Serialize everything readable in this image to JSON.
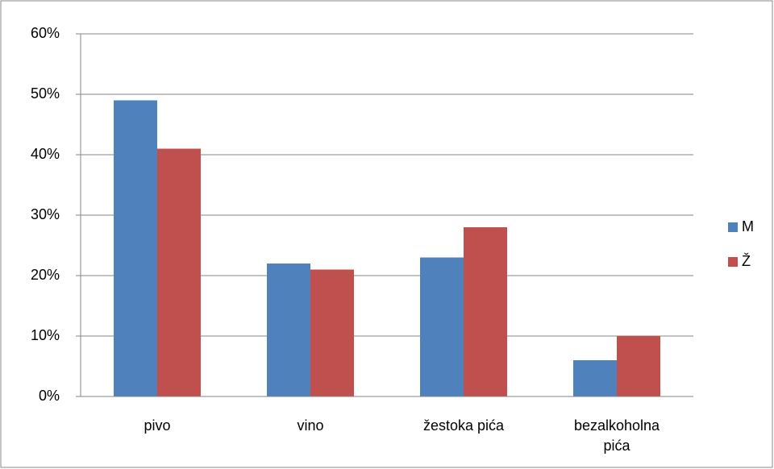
{
  "chart_data": {
    "type": "bar",
    "categories": [
      "pivo",
      "vino",
      "žestoka pića",
      "bezalkoholna pića"
    ],
    "series": [
      {
        "name": "M",
        "color": "#4f81bd",
        "values": [
          49,
          22,
          23,
          6
        ]
      },
      {
        "name": "Ž",
        "color": "#c0504d",
        "values": [
          41,
          21,
          28,
          10
        ]
      }
    ],
    "ylim": [
      0,
      60
    ],
    "yticks": [
      {
        "value": 0,
        "label": "0%"
      },
      {
        "value": 10,
        "label": "10%"
      },
      {
        "value": 20,
        "label": "20%"
      },
      {
        "value": 30,
        "label": "30%"
      },
      {
        "value": 40,
        "label": "40%"
      },
      {
        "value": 50,
        "label": "50%"
      },
      {
        "value": 60,
        "label": "60%"
      }
    ],
    "grid": true,
    "legend": "right"
  }
}
